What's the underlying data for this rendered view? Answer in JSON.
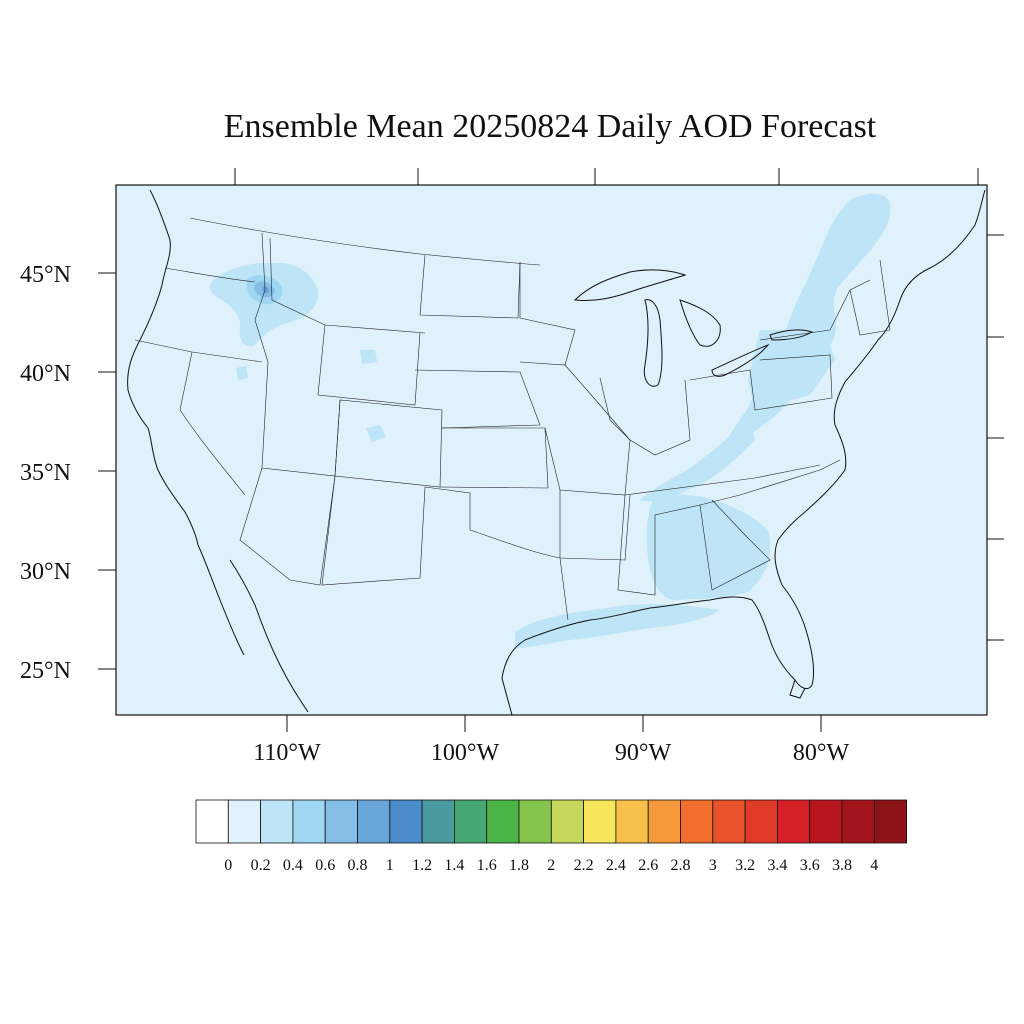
{
  "title": "Ensemble Mean 20250824 Daily AOD Forecast",
  "map": {
    "projection": "lambert-like",
    "lat_labels": [
      "45°N",
      "40°N",
      "35°N",
      "30°N",
      "25°N"
    ],
    "lon_labels": [
      "110°W",
      "100°W",
      "90°W",
      "80°W"
    ],
    "background_color": "#dff1fb",
    "plumes": [
      {
        "region": "Idaho/Montana smoke",
        "aod_range": "0.2-1.2"
      },
      {
        "region": "Appalachian/Northeast band",
        "aod_range": "0.2-0.4"
      },
      {
        "region": "Gulf Coast band",
        "aod_range": "0.2-0.4"
      },
      {
        "region": "Southeast (AL/GA)",
        "aod_range": "0.2-0.4"
      }
    ]
  },
  "colorbar": {
    "labels": [
      "0",
      "0.2",
      "0.4",
      "0.6",
      "0.8",
      "1",
      "1.2",
      "1.4",
      "1.6",
      "1.8",
      "2",
      "2.2",
      "2.4",
      "2.6",
      "2.8",
      "3",
      "3.2",
      "3.4",
      "3.6",
      "3.8",
      "4"
    ],
    "colors": [
      "#ffffff",
      "#dff1fb",
      "#bde5f7",
      "#9fd7f3",
      "#84bde6",
      "#68a6da",
      "#4a8bc9",
      "#4a9a9f",
      "#48a874",
      "#4bb447",
      "#86c54b",
      "#c4d75a",
      "#f6e75c",
      "#f6c04b",
      "#f59a3c",
      "#f16d2d",
      "#e9532b",
      "#e03a28",
      "#d42128",
      "#b8161f",
      "#a3151c",
      "#8c1418"
    ]
  }
}
